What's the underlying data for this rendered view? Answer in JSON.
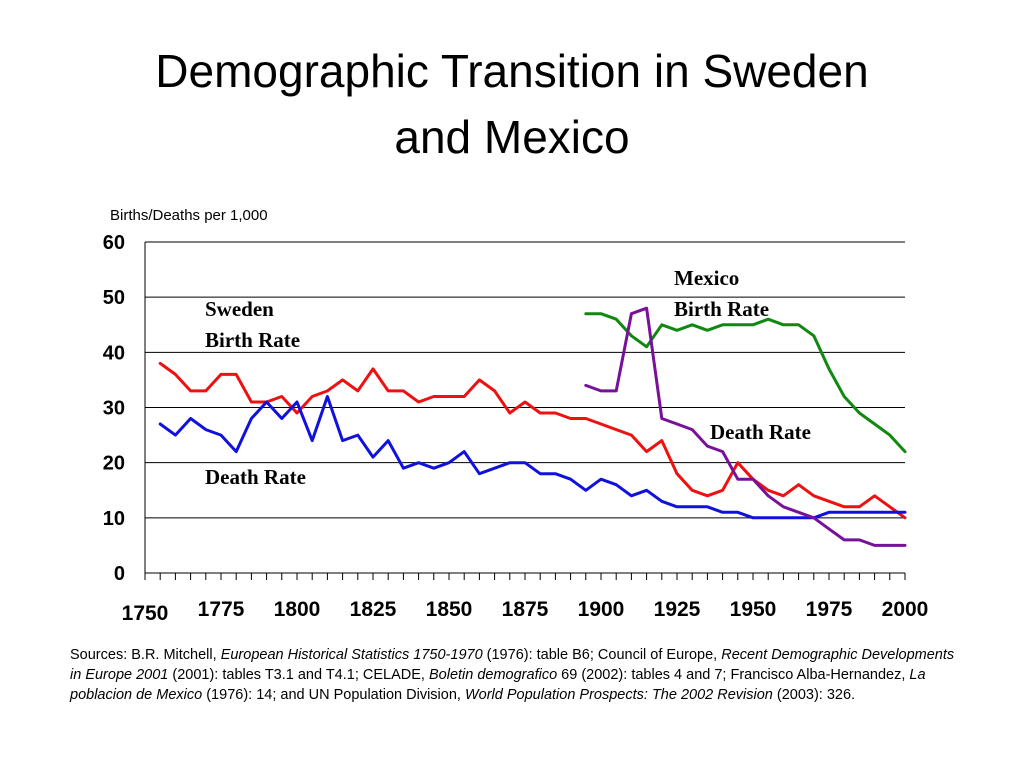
{
  "title": {
    "line1": "Demographic Transition in Sweden",
    "line2": "and Mexico"
  },
  "chart_data": {
    "type": "line",
    "ylabel": "Births/Deaths per 1,000",
    "ylim": [
      0,
      60
    ],
    "yticks": [
      "0",
      "10",
      "20",
      "30",
      "40",
      "50",
      "60"
    ],
    "xlim": [
      1750,
      2000
    ],
    "xticks": [
      "1750",
      "1775",
      "1800",
      "1825",
      "1850",
      "1875",
      "1900",
      "1925",
      "1950",
      "1975",
      "2000"
    ],
    "grid": "horizontal",
    "series": [
      {
        "name": "Sweden Birth Rate",
        "color": "#ee1111",
        "x": [
          1755,
          1760,
          1765,
          1770,
          1775,
          1780,
          1785,
          1790,
          1795,
          1800,
          1805,
          1810,
          1815,
          1820,
          1825,
          1830,
          1835,
          1840,
          1845,
          1850,
          1855,
          1860,
          1865,
          1870,
          1875,
          1880,
          1885,
          1890,
          1895,
          1900,
          1905,
          1910,
          1915,
          1920,
          1925,
          1930,
          1935,
          1940,
          1945,
          1950,
          1955,
          1960,
          1965,
          1970,
          1975,
          1980,
          1985,
          1990,
          1995,
          2000
        ],
        "y": [
          38,
          36,
          33,
          33,
          36,
          36,
          31,
          31,
          32,
          29,
          32,
          33,
          35,
          33,
          37,
          33,
          33,
          31,
          32,
          32,
          32,
          35,
          33,
          29,
          31,
          29,
          29,
          28,
          28,
          27,
          26,
          25,
          22,
          24,
          18,
          15,
          14,
          15,
          20,
          17,
          15,
          14,
          16,
          14,
          13,
          12,
          12,
          14,
          12,
          10
        ]
      },
      {
        "name": "Sweden Death Rate",
        "color": "#1111dd",
        "x": [
          1755,
          1760,
          1765,
          1770,
          1775,
          1780,
          1785,
          1790,
          1795,
          1800,
          1805,
          1810,
          1815,
          1820,
          1825,
          1830,
          1835,
          1840,
          1845,
          1850,
          1855,
          1860,
          1865,
          1870,
          1875,
          1880,
          1885,
          1890,
          1895,
          1900,
          1905,
          1910,
          1915,
          1920,
          1925,
          1930,
          1935,
          1940,
          1945,
          1950,
          1955,
          1960,
          1965,
          1970,
          1975,
          1980,
          1985,
          1990,
          1995,
          2000
        ],
        "y": [
          27,
          25,
          28,
          26,
          25,
          22,
          28,
          31,
          28,
          31,
          24,
          32,
          24,
          25,
          21,
          24,
          19,
          20,
          19,
          20,
          22,
          18,
          19,
          20,
          20,
          18,
          18,
          17,
          15,
          17,
          16,
          14,
          15,
          13,
          12,
          12,
          12,
          11,
          11,
          10,
          10,
          10,
          10,
          10,
          11,
          11,
          11,
          11,
          11,
          11
        ]
      },
      {
        "name": "Mexico Birth Rate",
        "color": "#118811",
        "x": [
          1895,
          1900,
          1905,
          1910,
          1915,
          1920,
          1925,
          1930,
          1935,
          1940,
          1945,
          1950,
          1955,
          1960,
          1965,
          1970,
          1975,
          1980,
          1985,
          1990,
          1995,
          2000
        ],
        "y": [
          47,
          47,
          46,
          43,
          41,
          45,
          44,
          45,
          44,
          45,
          45,
          45,
          46,
          45,
          45,
          43,
          37,
          32,
          29,
          27,
          25,
          22
        ]
      },
      {
        "name": "Mexico Death Rate",
        "color": "#771199",
        "x": [
          1895,
          1900,
          1905,
          1910,
          1915,
          1920,
          1925,
          1930,
          1935,
          1940,
          1945,
          1950,
          1955,
          1960,
          1965,
          1970,
          1975,
          1980,
          1985,
          1990,
          1995,
          2000
        ],
        "y": [
          34,
          33,
          33,
          47,
          48,
          28,
          27,
          26,
          23,
          22,
          17,
          17,
          14,
          12,
          11,
          10,
          8,
          6,
          6,
          5,
          5,
          5
        ]
      }
    ],
    "annotations": [
      {
        "lines": [
          "Mexico",
          "Birth Rate"
        ]
      },
      {
        "lines": [
          "Sweden",
          "Birth Rate"
        ]
      },
      {
        "lines": [
          "Death Rate"
        ]
      },
      {
        "lines": [
          "Death Rate"
        ]
      }
    ]
  },
  "sources": {
    "prefix": "Sources: B.R. Mitchell, ",
    "book1": "European Historical Statistics 1750-1970",
    "part2": " (1976): table B6; Council of Europe, ",
    "book2": "Recent Demographic Developments in Europe 2001",
    "part3": " (2001): tables T3.1 and T4.1; CELADE, ",
    "book3": "Boletin demografico",
    "part4": " 69 (2002): tables 4 and 7; Francisco Alba-Hernandez, ",
    "book4": "La poblacion de Mexico",
    "part5": " (1976): 14; and UN Population Division, ",
    "book5": "World Population Prospects: The 2002 Revision",
    "part6": " (2003): 326."
  }
}
